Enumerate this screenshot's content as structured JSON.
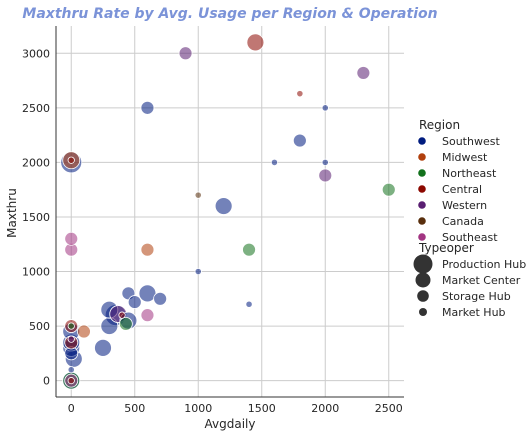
{
  "chart_data": {
    "type": "scatter",
    "title": "Maxthru Rate by Avg. Usage per Region & Operation",
    "title_color": "#7b93d8",
    "xlabel": "Avgdaily",
    "ylabel": "Maxthru",
    "xlim": [
      -120,
      2620
    ],
    "ylim": [
      -150,
      3250
    ],
    "xticks": [
      0,
      500,
      1000,
      1500,
      2000,
      2500
    ],
    "yticks": [
      0,
      500,
      1000,
      1500,
      2000,
      2500,
      3000
    ],
    "grid": true,
    "legend_placement": "right",
    "hue_title": "Region",
    "size_title": "Typeoper",
    "regions": [
      {
        "name": "Southwest",
        "color": "#001c7f"
      },
      {
        "name": "Midwest",
        "color": "#b1400d"
      },
      {
        "name": "Northeast",
        "color": "#12711c"
      },
      {
        "name": "Central",
        "color": "#8c0800"
      },
      {
        "name": "Western",
        "color": "#591e71"
      },
      {
        "name": "Canada",
        "color": "#592f0d"
      },
      {
        "name": "Southeast",
        "color": "#a23582"
      }
    ],
    "typeopers": [
      {
        "name": "Production Hub",
        "size": 4
      },
      {
        "name": "Market Center",
        "size": 3
      },
      {
        "name": "Storage Hub",
        "size": 2
      },
      {
        "name": "Market Hub",
        "size": 1
      }
    ],
    "points": [
      {
        "x": 0,
        "y": 0,
        "region": "Southwest",
        "type": "Market Center"
      },
      {
        "x": 0,
        "y": 0,
        "region": "Northeast",
        "type": "Market Center"
      },
      {
        "x": 0,
        "y": 0,
        "region": "Southeast",
        "type": "Storage Hub"
      },
      {
        "x": 0,
        "y": 0,
        "region": "Central",
        "type": "Market Hub"
      },
      {
        "x": 0,
        "y": 100,
        "region": "Southwest",
        "type": "Market Hub"
      },
      {
        "x": 20,
        "y": 200,
        "region": "Southwest",
        "type": "Market Center"
      },
      {
        "x": 0,
        "y": 250,
        "region": "Southwest",
        "type": "Storage Hub"
      },
      {
        "x": 0,
        "y": 300,
        "region": "Southwest",
        "type": "Market Center"
      },
      {
        "x": 0,
        "y": 350,
        "region": "Central",
        "type": "Storage Hub"
      },
      {
        "x": 0,
        "y": 350,
        "region": "Southwest",
        "type": "Market Center"
      },
      {
        "x": 0,
        "y": 380,
        "region": "Western",
        "type": "Market Hub"
      },
      {
        "x": 0,
        "y": 450,
        "region": "Southwest",
        "type": "Market Center"
      },
      {
        "x": 0,
        "y": 500,
        "region": "Central",
        "type": "Storage Hub"
      },
      {
        "x": 0,
        "y": 500,
        "region": "Northeast",
        "type": "Market Hub"
      },
      {
        "x": 100,
        "y": 450,
        "region": "Midwest",
        "type": "Storage Hub"
      },
      {
        "x": 0,
        "y": 1200,
        "region": "Southeast",
        "type": "Storage Hub"
      },
      {
        "x": 0,
        "y": 1300,
        "region": "Southeast",
        "type": "Storage Hub"
      },
      {
        "x": 0,
        "y": 2000,
        "region": "Southwest",
        "type": "Production Hub"
      },
      {
        "x": 0,
        "y": 2020,
        "region": "Midwest",
        "type": "Market Center"
      },
      {
        "x": 0,
        "y": 2020,
        "region": "Central",
        "type": "Market Hub"
      },
      {
        "x": 250,
        "y": 300,
        "region": "Southwest",
        "type": "Market Center"
      },
      {
        "x": 300,
        "y": 500,
        "region": "Southwest",
        "type": "Market Center"
      },
      {
        "x": 300,
        "y": 650,
        "region": "Southwest",
        "type": "Market Center"
      },
      {
        "x": 350,
        "y": 600,
        "region": "Southwest",
        "type": "Production Hub"
      },
      {
        "x": 370,
        "y": 610,
        "region": "Western",
        "type": "Market Center"
      },
      {
        "x": 400,
        "y": 600,
        "region": "Central",
        "type": "Market Hub"
      },
      {
        "x": 430,
        "y": 520,
        "region": "Northeast",
        "type": "Storage Hub"
      },
      {
        "x": 450,
        "y": 550,
        "region": "Southwest",
        "type": "Market Center"
      },
      {
        "x": 450,
        "y": 800,
        "region": "Southwest",
        "type": "Storage Hub"
      },
      {
        "x": 500,
        "y": 720,
        "region": "Southwest",
        "type": "Storage Hub"
      },
      {
        "x": 600,
        "y": 600,
        "region": "Southeast",
        "type": "Storage Hub"
      },
      {
        "x": 600,
        "y": 800,
        "region": "Southwest",
        "type": "Market Center"
      },
      {
        "x": 600,
        "y": 1200,
        "region": "Midwest",
        "type": "Storage Hub"
      },
      {
        "x": 600,
        "y": 2500,
        "region": "Southwest",
        "type": "Storage Hub"
      },
      {
        "x": 700,
        "y": 750,
        "region": "Southwest",
        "type": "Storage Hub"
      },
      {
        "x": 900,
        "y": 3000,
        "region": "Western",
        "type": "Storage Hub"
      },
      {
        "x": 1000,
        "y": 1000,
        "region": "Southwest",
        "type": "Market Hub"
      },
      {
        "x": 1000,
        "y": 1700,
        "region": "Canada",
        "type": "Market Hub"
      },
      {
        "x": 1200,
        "y": 1600,
        "region": "Southwest",
        "type": "Market Center"
      },
      {
        "x": 1400,
        "y": 700,
        "region": "Southwest",
        "type": "Market Hub"
      },
      {
        "x": 1400,
        "y": 1200,
        "region": "Northeast",
        "type": "Storage Hub"
      },
      {
        "x": 1450,
        "y": 3100,
        "region": "Central",
        "type": "Market Center"
      },
      {
        "x": 1600,
        "y": 2000,
        "region": "Southwest",
        "type": "Market Hub"
      },
      {
        "x": 1800,
        "y": 2200,
        "region": "Southwest",
        "type": "Storage Hub"
      },
      {
        "x": 1800,
        "y": 2630,
        "region": "Central",
        "type": "Market Hub"
      },
      {
        "x": 2000,
        "y": 2000,
        "region": "Southwest",
        "type": "Market Hub"
      },
      {
        "x": 2000,
        "y": 1880,
        "region": "Western",
        "type": "Storage Hub"
      },
      {
        "x": 2000,
        "y": 2500,
        "region": "Southwest",
        "type": "Market Hub"
      },
      {
        "x": 2300,
        "y": 2820,
        "region": "Western",
        "type": "Storage Hub"
      },
      {
        "x": 2500,
        "y": 1750,
        "region": "Northeast",
        "type": "Storage Hub"
      }
    ]
  }
}
